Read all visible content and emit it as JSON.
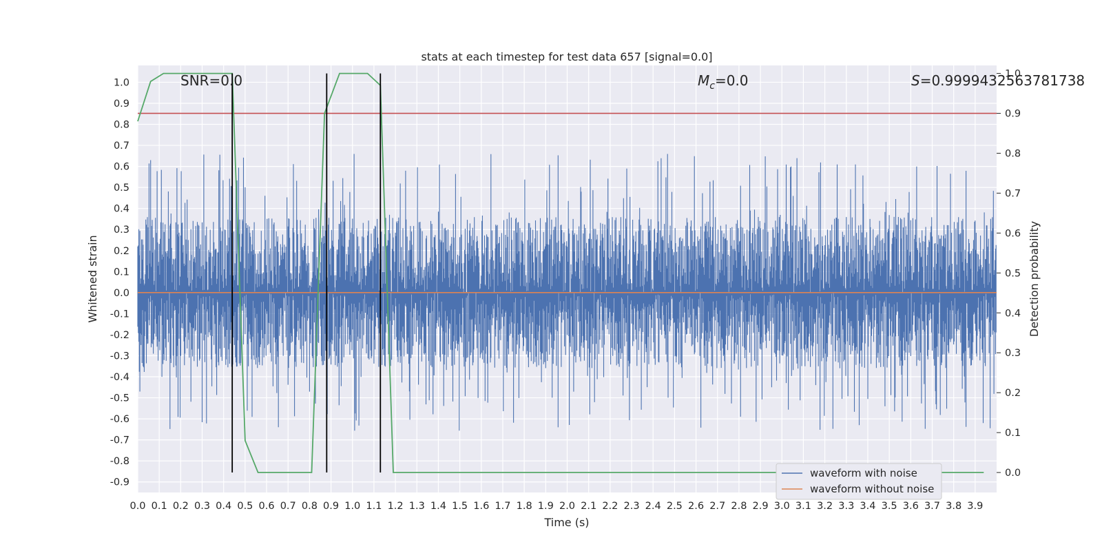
{
  "chart_data": {
    "type": "line",
    "title": "stats at each timestep for test data 657 [signal=0.0]",
    "xlabel": "Time (s)",
    "ylabel_left": "Whitened strain",
    "ylabel_right": "Detection probability",
    "xlim": [
      0.0,
      4.0
    ],
    "ylim_left": [
      -0.95,
      1.08
    ],
    "ylim_right": [
      -0.05,
      1.02
    ],
    "x_ticks": [
      "0.0",
      "0.1",
      "0.2",
      "0.3",
      "0.4",
      "0.5",
      "0.6",
      "0.7",
      "0.8",
      "0.9",
      "1.0",
      "1.1",
      "1.2",
      "1.3",
      "1.4",
      "1.5",
      "1.6",
      "1.7",
      "1.8",
      "1.9",
      "2.0",
      "2.1",
      "2.2",
      "2.3",
      "2.4",
      "2.5",
      "2.6",
      "2.7",
      "2.8",
      "2.9",
      "3.0",
      "3.1",
      "3.2",
      "3.3",
      "3.4",
      "3.5",
      "3.6",
      "3.7",
      "3.8",
      "3.9"
    ],
    "y_ticks_left": [
      "1.0",
      "0.9",
      "0.8",
      "0.7",
      "0.6",
      "0.5",
      "0.4",
      "0.3",
      "0.2",
      "0.1",
      "0.0",
      "-0.1",
      "-0.2",
      "-0.3",
      "-0.4",
      "-0.5",
      "-0.6",
      "-0.7",
      "-0.8",
      "-0.9"
    ],
    "y_ticks_right": [
      "1.0",
      "0.9",
      "0.8",
      "0.7",
      "0.6",
      "0.5",
      "0.4",
      "0.3",
      "0.2",
      "0.1",
      "0.0"
    ],
    "annotations": {
      "snr": "SNR=0.0",
      "mc_symbol": "M",
      "mc_sub": "c",
      "mc_value": "=0.0",
      "s_symbol": "S",
      "s_value": "=0.9999432563781738"
    },
    "grid": true,
    "legend_position": "lower-right",
    "series": [
      {
        "name": "waveform with noise",
        "color": "#4c72b0",
        "kind": "noise",
        "amplitude_typical": 0.3,
        "peak_max": 1.0
      },
      {
        "name": "waveform without noise",
        "color": "#dd8452",
        "y": 0.0
      },
      {
        "color": "#55a868",
        "axis": "right",
        "x": [
          0.0,
          0.06,
          0.12,
          0.2,
          0.3,
          0.44,
          0.5,
          0.56,
          0.65,
          0.75,
          0.81,
          0.87,
          0.94,
          1.0,
          1.07,
          1.13,
          1.19,
          1.3,
          1.5,
          2.0,
          2.5,
          3.0,
          3.5,
          3.94
        ],
        "y": [
          0.88,
          0.98,
          1.0,
          1.0,
          1.0,
          1.0,
          0.08,
          0.0,
          0.0,
          0.0,
          0.0,
          0.9,
          1.0,
          1.0,
          1.0,
          0.97,
          0.0,
          0.0,
          0.0,
          0.0,
          0.0,
          0.0,
          0.0,
          0.0
        ]
      },
      {
        "color": "#c44e52",
        "axis": "right",
        "y": 0.9
      }
    ],
    "vlines": {
      "color": "#000000",
      "x": [
        0.44,
        0.88,
        1.13
      ],
      "ymin": 0.0,
      "ymax": 1.0
    }
  }
}
